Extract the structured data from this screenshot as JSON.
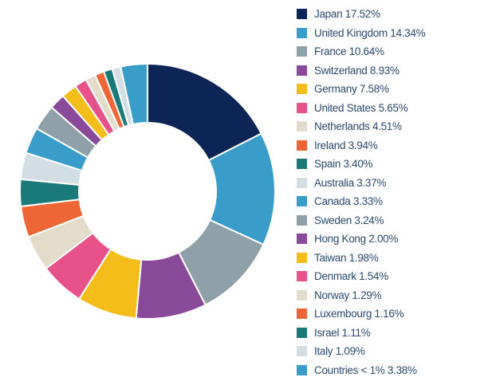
{
  "chart_data": {
    "type": "pie",
    "title": "",
    "donut": true,
    "legend_position": "right",
    "slices": [
      {
        "label": "Japan 17.52%",
        "value": 17.52,
        "color": "#0c2456"
      },
      {
        "label": "United Kingdom 14.34%",
        "value": 14.34,
        "color": "#3a9dc9"
      },
      {
        "label": "France 10.64%",
        "value": 10.64,
        "color": "#8fa0a8"
      },
      {
        "label": "Switzerland 8.93%",
        "value": 8.93,
        "color": "#8a4a9a"
      },
      {
        "label": "Germany 7.58%",
        "value": 7.58,
        "color": "#f4bd1a"
      },
      {
        "label": "United States 5.65%",
        "value": 5.65,
        "color": "#e8528a"
      },
      {
        "label": "Netherlands 4.51%",
        "value": 4.51,
        "color": "#e4dccb"
      },
      {
        "label": "Ireland 3.94%",
        "value": 3.94,
        "color": "#ee6636"
      },
      {
        "label": "Spain 3.40%",
        "value": 3.4,
        "color": "#1a7a7a"
      },
      {
        "label": "Australia 3.37%",
        "value": 3.37,
        "color": "#d3dee4"
      },
      {
        "label": "Canada 3.33%",
        "value": 3.33,
        "color": "#3a9dc9"
      },
      {
        "label": "Sweden 3.24%",
        "value": 3.24,
        "color": "#8fa0a8"
      },
      {
        "label": "Hong Kong 2.00%",
        "value": 2.0,
        "color": "#8a4a9a"
      },
      {
        "label": "Taiwan 1.98%",
        "value": 1.98,
        "color": "#f4bd1a"
      },
      {
        "label": "Denmark 1.54%",
        "value": 1.54,
        "color": "#e8528a"
      },
      {
        "label": "Norway 1.29%",
        "value": 1.29,
        "color": "#e4dccb"
      },
      {
        "label": "Luxembourg 1.16%",
        "value": 1.16,
        "color": "#ee6636"
      },
      {
        "label": "Israel 1.11%",
        "value": 1.11,
        "color": "#1a7a7a"
      },
      {
        "label": "Italy 1.09%",
        "value": 1.09,
        "color": "#d3dee4"
      },
      {
        "label": "Countries < 1% 3.38%",
        "value": 3.38,
        "color": "#3a9dc9"
      }
    ]
  }
}
